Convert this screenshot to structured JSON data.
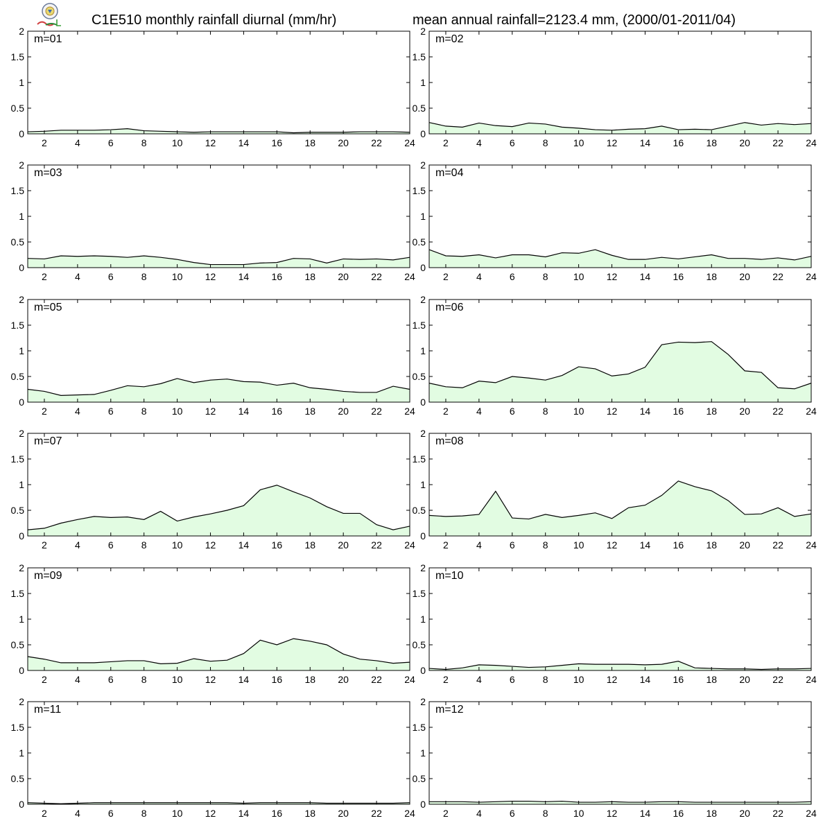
{
  "header": {
    "title_left": "C1E510 monthly rainfall diurnal (mm/hr)",
    "title_right": "mean annual rainfall=2123.4 mm, (2000/01-2011/04)",
    "logo_icon": "lab-seal-logo"
  },
  "colors": {
    "fill": "#e2fce2",
    "line": "#000000",
    "frame": "#000000"
  },
  "chart_data": [
    {
      "type": "area",
      "label": "m=01",
      "ylim": [
        0,
        2
      ],
      "yticks": [
        "0",
        "0.5",
        "1",
        "1.5",
        "2"
      ],
      "xticks": [
        "2",
        "4",
        "6",
        "8",
        "10",
        "12",
        "14",
        "16",
        "18",
        "20",
        "22",
        "24"
      ],
      "x": [
        1,
        2,
        3,
        4,
        5,
        6,
        7,
        8,
        9,
        10,
        11,
        12,
        13,
        14,
        15,
        16,
        17,
        18,
        19,
        20,
        21,
        22,
        23,
        24
      ],
      "values": [
        0.04,
        0.05,
        0.07,
        0.07,
        0.07,
        0.08,
        0.1,
        0.06,
        0.05,
        0.04,
        0.03,
        0.04,
        0.04,
        0.04,
        0.04,
        0.04,
        0.02,
        0.03,
        0.03,
        0.03,
        0.04,
        0.04,
        0.04,
        0.03
      ]
    },
    {
      "type": "area",
      "label": "m=02",
      "ylim": [
        0,
        2
      ],
      "yticks": [
        "0",
        "0.5",
        "1",
        "1.5",
        "2"
      ],
      "xticks": [
        "2",
        "4",
        "6",
        "8",
        "10",
        "12",
        "14",
        "16",
        "18",
        "20",
        "22",
        "24"
      ],
      "x": [
        1,
        2,
        3,
        4,
        5,
        6,
        7,
        8,
        9,
        10,
        11,
        12,
        13,
        14,
        15,
        16,
        17,
        18,
        19,
        20,
        21,
        22,
        23,
        24
      ],
      "values": [
        0.22,
        0.15,
        0.13,
        0.21,
        0.16,
        0.14,
        0.21,
        0.19,
        0.13,
        0.11,
        0.08,
        0.07,
        0.09,
        0.1,
        0.15,
        0.08,
        0.09,
        0.08,
        0.15,
        0.22,
        0.17,
        0.2,
        0.18,
        0.2
      ]
    },
    {
      "type": "area",
      "label": "m=03",
      "ylim": [
        0,
        2
      ],
      "yticks": [
        "0",
        "0.5",
        "1",
        "1.5",
        "2"
      ],
      "xticks": [
        "2",
        "4",
        "6",
        "8",
        "10",
        "12",
        "14",
        "16",
        "18",
        "20",
        "22",
        "24"
      ],
      "x": [
        1,
        2,
        3,
        4,
        5,
        6,
        7,
        8,
        9,
        10,
        11,
        12,
        13,
        14,
        15,
        16,
        17,
        18,
        19,
        20,
        21,
        22,
        23,
        24
      ],
      "values": [
        0.18,
        0.17,
        0.23,
        0.22,
        0.23,
        0.22,
        0.2,
        0.23,
        0.2,
        0.16,
        0.1,
        0.06,
        0.06,
        0.06,
        0.09,
        0.1,
        0.18,
        0.17,
        0.09,
        0.17,
        0.16,
        0.17,
        0.15,
        0.2
      ]
    },
    {
      "type": "area",
      "label": "m=04",
      "ylim": [
        0,
        2
      ],
      "yticks": [
        "0",
        "0.5",
        "1",
        "1.5",
        "2"
      ],
      "xticks": [
        "2",
        "4",
        "6",
        "8",
        "10",
        "12",
        "14",
        "16",
        "18",
        "20",
        "22",
        "24"
      ],
      "x": [
        1,
        2,
        3,
        4,
        5,
        6,
        7,
        8,
        9,
        10,
        11,
        12,
        13,
        14,
        15,
        16,
        17,
        18,
        19,
        20,
        21,
        22,
        23,
        24
      ],
      "values": [
        0.35,
        0.23,
        0.22,
        0.25,
        0.19,
        0.25,
        0.25,
        0.21,
        0.29,
        0.28,
        0.35,
        0.24,
        0.16,
        0.16,
        0.2,
        0.17,
        0.21,
        0.25,
        0.18,
        0.18,
        0.16,
        0.19,
        0.15,
        0.22
      ]
    },
    {
      "type": "area",
      "label": "m=05",
      "ylim": [
        0,
        2
      ],
      "yticks": [
        "0",
        "0.5",
        "1",
        "1.5",
        "2"
      ],
      "xticks": [
        "2",
        "4",
        "6",
        "8",
        "10",
        "12",
        "14",
        "16",
        "18",
        "20",
        "22",
        "24"
      ],
      "x": [
        1,
        2,
        3,
        4,
        5,
        6,
        7,
        8,
        9,
        10,
        11,
        12,
        13,
        14,
        15,
        16,
        17,
        18,
        19,
        20,
        21,
        22,
        23,
        24
      ],
      "values": [
        0.25,
        0.21,
        0.13,
        0.14,
        0.15,
        0.23,
        0.32,
        0.3,
        0.36,
        0.46,
        0.38,
        0.43,
        0.45,
        0.4,
        0.39,
        0.33,
        0.37,
        0.28,
        0.25,
        0.21,
        0.19,
        0.19,
        0.31,
        0.25
      ]
    },
    {
      "type": "area",
      "label": "m=06",
      "ylim": [
        0,
        2
      ],
      "yticks": [
        "0",
        "0.5",
        "1",
        "1.5",
        "2"
      ],
      "xticks": [
        "2",
        "4",
        "6",
        "8",
        "10",
        "12",
        "14",
        "16",
        "18",
        "20",
        "22",
        "24"
      ],
      "x": [
        1,
        2,
        3,
        4,
        5,
        6,
        7,
        8,
        9,
        10,
        11,
        12,
        13,
        14,
        15,
        16,
        17,
        18,
        19,
        20,
        21,
        22,
        23,
        24
      ],
      "values": [
        0.37,
        0.3,
        0.28,
        0.41,
        0.38,
        0.5,
        0.47,
        0.43,
        0.52,
        0.69,
        0.65,
        0.51,
        0.55,
        0.68,
        1.12,
        1.17,
        1.16,
        1.18,
        0.93,
        0.61,
        0.58,
        0.28,
        0.26,
        0.37
      ]
    },
    {
      "type": "area",
      "label": "m=07",
      "ylim": [
        0,
        2
      ],
      "yticks": [
        "0",
        "0.5",
        "1",
        "1.5",
        "2"
      ],
      "xticks": [
        "2",
        "4",
        "6",
        "8",
        "10",
        "12",
        "14",
        "16",
        "18",
        "20",
        "22",
        "24"
      ],
      "x": [
        1,
        2,
        3,
        4,
        5,
        6,
        7,
        8,
        9,
        10,
        11,
        12,
        13,
        14,
        15,
        16,
        17,
        18,
        19,
        20,
        21,
        22,
        23,
        24
      ],
      "values": [
        0.12,
        0.15,
        0.25,
        0.32,
        0.38,
        0.36,
        0.37,
        0.32,
        0.48,
        0.29,
        0.37,
        0.43,
        0.5,
        0.59,
        0.9,
        0.99,
        0.86,
        0.74,
        0.57,
        0.44,
        0.44,
        0.22,
        0.12,
        0.19
      ]
    },
    {
      "type": "area",
      "label": "m=08",
      "ylim": [
        0,
        2
      ],
      "yticks": [
        "0",
        "0.5",
        "1",
        "1.5",
        "2"
      ],
      "xticks": [
        "2",
        "4",
        "6",
        "8",
        "10",
        "12",
        "14",
        "16",
        "18",
        "20",
        "22",
        "24"
      ],
      "x": [
        1,
        2,
        3,
        4,
        5,
        6,
        7,
        8,
        9,
        10,
        11,
        12,
        13,
        14,
        15,
        16,
        17,
        18,
        19,
        20,
        21,
        22,
        23,
        24
      ],
      "values": [
        0.4,
        0.38,
        0.39,
        0.42,
        0.87,
        0.35,
        0.33,
        0.42,
        0.36,
        0.4,
        0.45,
        0.34,
        0.55,
        0.6,
        0.79,
        1.07,
        0.96,
        0.88,
        0.69,
        0.42,
        0.43,
        0.55,
        0.38,
        0.43
      ]
    },
    {
      "type": "area",
      "label": "m=09",
      "ylim": [
        0,
        2
      ],
      "yticks": [
        "0",
        "0.5",
        "1",
        "1.5",
        "2"
      ],
      "xticks": [
        "2",
        "4",
        "6",
        "8",
        "10",
        "12",
        "14",
        "16",
        "18",
        "20",
        "22",
        "24"
      ],
      "x": [
        1,
        2,
        3,
        4,
        5,
        6,
        7,
        8,
        9,
        10,
        11,
        12,
        13,
        14,
        15,
        16,
        17,
        18,
        19,
        20,
        21,
        22,
        23,
        24
      ],
      "values": [
        0.27,
        0.22,
        0.15,
        0.15,
        0.15,
        0.17,
        0.19,
        0.19,
        0.13,
        0.14,
        0.23,
        0.18,
        0.2,
        0.33,
        0.59,
        0.5,
        0.62,
        0.57,
        0.5,
        0.32,
        0.22,
        0.19,
        0.14,
        0.16
      ]
    },
    {
      "type": "area",
      "label": "m=10",
      "ylim": [
        0,
        2
      ],
      "yticks": [
        "0",
        "0.5",
        "1",
        "1.5",
        "2"
      ],
      "xticks": [
        "2",
        "4",
        "6",
        "8",
        "10",
        "12",
        "14",
        "16",
        "18",
        "20",
        "22",
        "24"
      ],
      "x": [
        1,
        2,
        3,
        4,
        5,
        6,
        7,
        8,
        9,
        10,
        11,
        12,
        13,
        14,
        15,
        16,
        17,
        18,
        19,
        20,
        21,
        22,
        23,
        24
      ],
      "values": [
        0.04,
        0.02,
        0.05,
        0.11,
        0.1,
        0.08,
        0.06,
        0.07,
        0.1,
        0.13,
        0.12,
        0.12,
        0.12,
        0.11,
        0.12,
        0.18,
        0.05,
        0.04,
        0.03,
        0.03,
        0.02,
        0.03,
        0.03,
        0.04
      ]
    },
    {
      "type": "area",
      "label": "m=11",
      "ylim": [
        0,
        2
      ],
      "yticks": [
        "0",
        "0.5",
        "1",
        "1.5",
        "2"
      ],
      "xticks": [
        "2",
        "4",
        "6",
        "8",
        "10",
        "12",
        "14",
        "16",
        "18",
        "20",
        "22",
        "24"
      ],
      "x": [
        1,
        2,
        3,
        4,
        5,
        6,
        7,
        8,
        9,
        10,
        11,
        12,
        13,
        14,
        15,
        16,
        17,
        18,
        19,
        20,
        21,
        22,
        23,
        24
      ],
      "values": [
        0.03,
        0.02,
        0.01,
        0.02,
        0.03,
        0.03,
        0.03,
        0.03,
        0.03,
        0.03,
        0.03,
        0.03,
        0.03,
        0.02,
        0.03,
        0.03,
        0.03,
        0.03,
        0.02,
        0.02,
        0.02,
        0.02,
        0.02,
        0.03
      ]
    },
    {
      "type": "area",
      "label": "m=12",
      "ylim": [
        0,
        2
      ],
      "yticks": [
        "0",
        "0.5",
        "1",
        "1.5",
        "2"
      ],
      "xticks": [
        "2",
        "4",
        "6",
        "8",
        "10",
        "12",
        "14",
        "16",
        "18",
        "20",
        "22",
        "24"
      ],
      "x": [
        1,
        2,
        3,
        4,
        5,
        6,
        7,
        8,
        9,
        10,
        11,
        12,
        13,
        14,
        15,
        16,
        17,
        18,
        19,
        20,
        21,
        22,
        23,
        24
      ],
      "values": [
        0.05,
        0.05,
        0.05,
        0.04,
        0.05,
        0.06,
        0.06,
        0.05,
        0.06,
        0.04,
        0.04,
        0.05,
        0.04,
        0.04,
        0.05,
        0.05,
        0.04,
        0.04,
        0.04,
        0.04,
        0.04,
        0.04,
        0.04,
        0.05
      ]
    }
  ]
}
